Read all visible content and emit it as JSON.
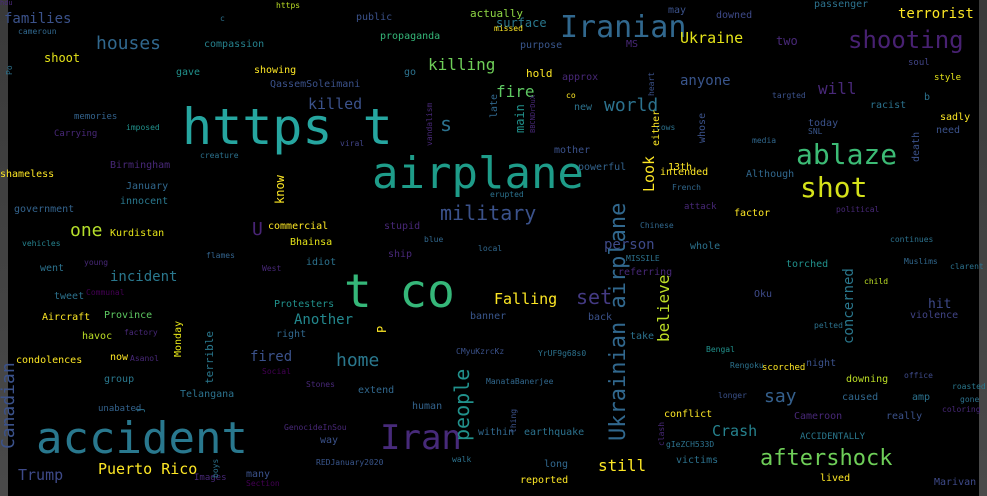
{
  "words": [
    {
      "t": "https t",
      "s": 50,
      "c": "#26a6a0"
    },
    {
      "t": "airplane",
      "s": 44,
      "c": "#1e9c89"
    },
    {
      "t": "t co",
      "s": 46,
      "c": "#35b779"
    },
    {
      "t": "accident",
      "s": 44,
      "c": "#29788e"
    },
    {
      "t": "Iran",
      "s": 34,
      "c": "#472a7a"
    },
    {
      "t": "Iranian",
      "s": 30,
      "c": "#31688e"
    },
    {
      "t": "ablaze",
      "s": 28,
      "c": "#3cbb75"
    },
    {
      "t": "shot",
      "s": 28,
      "c": "#d5e21a"
    },
    {
      "t": "shooting",
      "s": 24,
      "c": "#482172"
    },
    {
      "t": "aftershock",
      "s": 22,
      "c": "#6ece58"
    },
    {
      "t": "military",
      "s": 20,
      "c": "#3b528b"
    },
    {
      "t": "houses",
      "s": 18,
      "c": "#31688e"
    },
    {
      "t": "world",
      "s": 18,
      "c": "#2c728e"
    },
    {
      "t": "killing",
      "s": 16,
      "c": "#6ece58"
    },
    {
      "t": "home",
      "s": 18,
      "c": "#2a788e"
    },
    {
      "t": "set",
      "s": 20,
      "c": "#443a83"
    },
    {
      "t": "say",
      "s": 18,
      "c": "#35608d"
    },
    {
      "t": "one",
      "s": 18,
      "c": "#b5de2b"
    },
    {
      "t": "Ukraine",
      "s": 15,
      "c": "#e5e419"
    },
    {
      "t": "terrorist",
      "s": 14,
      "c": "#fde725"
    },
    {
      "t": "fire",
      "s": 16,
      "c": "#5ec962"
    },
    {
      "t": "killed",
      "s": 15,
      "c": "#3b528b"
    },
    {
      "t": "will",
      "s": 16,
      "c": "#482878"
    },
    {
      "t": "still",
      "s": 16,
      "c": "#fde725"
    },
    {
      "t": "Falling",
      "s": 15,
      "c": "#fde725"
    },
    {
      "t": "Puerto Rico",
      "s": 15,
      "c": "#fde725"
    },
    {
      "t": "Trump",
      "s": 15,
      "c": "#3e4a89"
    },
    {
      "t": "Crash",
      "s": 15,
      "c": "#26828e"
    },
    {
      "t": "Another",
      "s": 14,
      "c": "#23888e"
    },
    {
      "t": "incident",
      "s": 14,
      "c": "#2a788e"
    },
    {
      "t": "anyone",
      "s": 14,
      "c": "#39558c"
    },
    {
      "t": "person",
      "s": 14,
      "c": "#3e4a89"
    },
    {
      "t": "fired",
      "s": 14,
      "c": "#3b528b"
    },
    {
      "t": "families",
      "s": 14,
      "c": "#3b528b"
    },
    {
      "t": "s",
      "s": 20,
      "c": "#2c728e"
    },
    {
      "t": "U",
      "s": 18,
      "c": "#482475"
    },
    {
      "t": "shoot",
      "s": 12,
      "c": "#e5e419"
    },
    {
      "t": "hit",
      "s": 13,
      "c": "#3e4a89"
    },
    {
      "t": "actually",
      "s": 11,
      "c": "#8fd744"
    },
    {
      "t": "surface",
      "s": 12,
      "c": "#29788e"
    },
    {
      "t": "hold",
      "s": 11,
      "c": "#fde725"
    },
    {
      "t": "propaganda",
      "s": 10,
      "c": "#35b779"
    },
    {
      "t": "compassion",
      "s": 10,
      "c": "#26828e"
    },
    {
      "t": "gave",
      "s": 10,
      "c": "#21918c"
    },
    {
      "t": "showing",
      "s": 10,
      "c": "#fde725"
    },
    {
      "t": "QassemSoleimani",
      "s": 10,
      "c": "#3b528b"
    },
    {
      "t": "go",
      "s": 10,
      "c": "#2c728e"
    },
    {
      "t": "purpose",
      "s": 10,
      "c": "#39568c"
    },
    {
      "t": "approx",
      "s": 10,
      "c": "#482878"
    },
    {
      "t": "memories",
      "s": 9,
      "c": "#33638d"
    },
    {
      "t": "Carrying",
      "s": 9,
      "c": "#482878"
    },
    {
      "t": "imposed",
      "s": 8,
      "c": "#21918c"
    },
    {
      "t": "Birmingham",
      "s": 10,
      "c": "#482878"
    },
    {
      "t": "shameless",
      "s": 10,
      "c": "#fde725"
    },
    {
      "t": "January",
      "s": 10,
      "c": "#31688e"
    },
    {
      "t": "innocent",
      "s": 10,
      "c": "#2a788e"
    },
    {
      "t": "government",
      "s": 10,
      "c": "#33638d"
    },
    {
      "t": "Kurdistan",
      "s": 10,
      "c": "#e5e419"
    },
    {
      "t": "vehicles",
      "s": 8,
      "c": "#26828e"
    },
    {
      "t": "went",
      "s": 10,
      "c": "#2c728e"
    },
    {
      "t": "tweet",
      "s": 10,
      "c": "#2c728e"
    },
    {
      "t": "Aircraft",
      "s": 10,
      "c": "#fde725"
    },
    {
      "t": "Province",
      "s": 10,
      "c": "#5ec962"
    },
    {
      "t": "havoc",
      "s": 10,
      "c": "#bddf26"
    },
    {
      "t": "condolences",
      "s": 10,
      "c": "#fde725"
    },
    {
      "t": "now",
      "s": 10,
      "c": "#fde725"
    },
    {
      "t": "group",
      "s": 10,
      "c": "#2a788e"
    },
    {
      "t": "unabated",
      "s": 9,
      "c": "#33638d"
    },
    {
      "t": "Telangana",
      "s": 10,
      "c": "#2c728e"
    },
    {
      "t": "Bhainsa",
      "s": 10,
      "c": "#e5e419"
    },
    {
      "t": "commercial",
      "s": 10,
      "c": "#fde725"
    },
    {
      "t": "Protesters",
      "s": 10,
      "c": "#21918c"
    },
    {
      "t": "right",
      "s": 10,
      "c": "#31688e"
    },
    {
      "t": "creature",
      "s": 8,
      "c": "#2c728e"
    },
    {
      "t": "viral",
      "s": 8,
      "c": "#414487"
    },
    {
      "t": "stupid",
      "s": 10,
      "c": "#482878"
    },
    {
      "t": "idiot",
      "s": 10,
      "c": "#2c728e"
    },
    {
      "t": "banner",
      "s": 10,
      "c": "#39568c"
    },
    {
      "t": "mother",
      "s": 10,
      "c": "#3b528b"
    },
    {
      "t": "powerful",
      "s": 10,
      "c": "#33638d"
    },
    {
      "t": "intended",
      "s": 10,
      "c": "#fde725"
    },
    {
      "t": "Although",
      "s": 10,
      "c": "#31688e"
    },
    {
      "t": "factor",
      "s": 10,
      "c": "#fde725"
    },
    {
      "t": "whole",
      "s": 10,
      "c": "#2c728e"
    },
    {
      "t": "torched",
      "s": 10,
      "c": "#21918c"
    },
    {
      "t": "MISSILE",
      "s": 8,
      "c": "#2c728e"
    },
    {
      "t": "referring",
      "s": 10,
      "c": "#482878"
    },
    {
      "t": "back",
      "s": 10,
      "c": "#3b528b"
    },
    {
      "t": "take",
      "s": 10,
      "c": "#2c728e"
    },
    {
      "t": "Oku",
      "s": 10,
      "c": "#3e4a89"
    },
    {
      "t": "Bengal",
      "s": 8,
      "c": "#21918c"
    },
    {
      "t": "pelted",
      "s": 8,
      "c": "#2c728e"
    },
    {
      "t": "violence",
      "s": 10,
      "c": "#414487"
    },
    {
      "t": "night",
      "s": 10,
      "c": "#3b528b"
    },
    {
      "t": "downing",
      "s": 10,
      "c": "#bddf26"
    },
    {
      "t": "caused",
      "s": 10,
      "c": "#31688e"
    },
    {
      "t": "amp",
      "s": 10,
      "c": "#2c728e"
    },
    {
      "t": "really",
      "s": 10,
      "c": "#3b528b"
    },
    {
      "t": "conflict",
      "s": 10,
      "c": "#fde725"
    },
    {
      "t": "ACCIDENTALLY",
      "s": 9,
      "c": "#2a788e"
    },
    {
      "t": "victims",
      "s": 10,
      "c": "#2c728e"
    },
    {
      "t": "lived",
      "s": 10,
      "c": "#fde725"
    },
    {
      "t": "Marivan",
      "s": 10,
      "c": "#3e4a89"
    },
    {
      "t": "human",
      "s": 10,
      "c": "#33638d"
    },
    {
      "t": "within",
      "s": 10,
      "c": "#31688e"
    },
    {
      "t": "earthquake",
      "s": 10,
      "c": "#2c728e"
    },
    {
      "t": "long",
      "s": 10,
      "c": "#31688e"
    },
    {
      "t": "reported",
      "s": 10,
      "c": "#fde725"
    },
    {
      "t": "extend",
      "s": 10,
      "c": "#31688e"
    },
    {
      "t": "way",
      "s": 10,
      "c": "#3b528b"
    },
    {
      "t": "many",
      "s": 10,
      "c": "#3b528b"
    },
    {
      "t": "REDJanuary2020",
      "s": 8,
      "c": "#39568c"
    },
    {
      "t": "GenocideInSou",
      "s": 8,
      "c": "#482878"
    },
    {
      "t": "Images",
      "s": 9,
      "c": "#482878"
    },
    {
      "t": "Section",
      "s": 8,
      "c": "#440154"
    },
    {
      "t": "Stones",
      "s": 8,
      "c": "#482878"
    },
    {
      "t": "Social",
      "s": 8,
      "c": "#440154"
    },
    {
      "t": "Asanol",
      "s": 8,
      "c": "#482878"
    },
    {
      "t": "factory",
      "s": 8,
      "c": "#482878"
    },
    {
      "t": "Communal",
      "s": 8,
      "c": "#440154"
    },
    {
      "t": "young",
      "s": 8,
      "c": "#482878"
    },
    {
      "t": "flames",
      "s": 8,
      "c": "#33638d"
    },
    {
      "t": "West",
      "s": 8,
      "c": "#482878"
    },
    {
      "t": "local",
      "s": 8,
      "c": "#31688e"
    },
    {
      "t": "Chinese",
      "s": 8,
      "c": "#31688e"
    },
    {
      "t": "attack",
      "s": 9,
      "c": "#482878"
    },
    {
      "t": "French",
      "s": 8,
      "c": "#31688e"
    },
    {
      "t": "erupted",
      "s": 8,
      "c": "#2c728e"
    },
    {
      "t": "political",
      "s": 8,
      "c": "#482878"
    },
    {
      "t": "continues",
      "s": 8,
      "c": "#2c728e"
    },
    {
      "t": "Muslims",
      "s": 8,
      "c": "#31688e"
    },
    {
      "t": "clarent",
      "s": 8,
      "c": "#2c728e"
    },
    {
      "t": "child",
      "s": 8,
      "c": "#bddf26"
    },
    {
      "t": "office",
      "s": 8,
      "c": "#3e4a89"
    },
    {
      "t": "roasted",
      "s": 8,
      "c": "#2a788e"
    },
    {
      "t": "gone",
      "s": 8,
      "c": "#2c728e"
    },
    {
      "t": "coloring",
      "s": 8,
      "c": "#482878"
    },
    {
      "t": "longer",
      "s": 8,
      "c": "#3b528b"
    },
    {
      "t": "scorched",
      "s": 9,
      "c": "#fde725"
    },
    {
      "t": "Rengoku",
      "s": 8,
      "c": "#2c728e"
    },
    {
      "t": "ManataBanerjee",
      "s": 8,
      "c": "#31688e"
    },
    {
      "t": "YrUF9g68s0",
      "s": 8,
      "c": "#2c728e"
    },
    {
      "t": "CMyuKzrcKz",
      "s": 8,
      "c": "#3b528b"
    },
    {
      "t": "Cameroon",
      "s": 10,
      "c": "#482878"
    },
    {
      "t": "gIeZCH533D",
      "s": 8,
      "c": "#2c728e"
    },
    {
      "t": "walk",
      "s": 8,
      "c": "#2c728e"
    },
    {
      "t": "today",
      "s": 10,
      "c": "#3b528b"
    },
    {
      "t": "racist",
      "s": 10,
      "c": "#2c728e"
    },
    {
      "t": "sadly",
      "s": 10,
      "c": "#fde725"
    },
    {
      "t": "need",
      "s": 10,
      "c": "#3b528b"
    },
    {
      "t": "b",
      "s": 10,
      "c": "#2c728e"
    },
    {
      "t": "style",
      "s": 9,
      "c": "#e5e419"
    },
    {
      "t": "soul",
      "s": 9,
      "c": "#414487"
    },
    {
      "t": "cows",
      "s": 8,
      "c": "#2c728e"
    },
    {
      "t": "SNL",
      "s": 8,
      "c": "#39568c"
    },
    {
      "t": "targted",
      "s": 8,
      "c": "#3b528b"
    },
    {
      "t": "media",
      "s": 8,
      "c": "#31688e"
    },
    {
      "t": "13th",
      "s": 10,
      "c": "#fde725"
    },
    {
      "t": "may",
      "s": 10,
      "c": "#3b528b"
    },
    {
      "t": "downed",
      "s": 10,
      "c": "#3e4a89"
    },
    {
      "t": "passenger",
      "s": 10,
      "c": "#2c728e"
    },
    {
      "t": "two",
      "s": 12,
      "c": "#482878"
    },
    {
      "t": "MS",
      "s": 10,
      "c": "#482878"
    },
    {
      "t": "co",
      "s": 8,
      "c": "#fde725"
    },
    {
      "t": "new",
      "s": 10,
      "c": "#2c728e"
    },
    {
      "t": "c",
      "s": 8,
      "c": "#2c728e"
    },
    {
      "t": "https",
      "s": 8,
      "c": "#bddf26"
    },
    {
      "t": "public",
      "s": 10,
      "c": "#3b528b"
    },
    {
      "t": "missed",
      "s": 8,
      "c": "#fde725"
    },
    {
      "t": "cameroun",
      "s": 8,
      "c": "#31688e"
    },
    {
      "t": "blue",
      "s": 8,
      "c": "#31688e"
    },
    {
      "t": "ship",
      "s": 10,
      "c": "#482878"
    },
    {
      "t": "P",
      "s": 12,
      "c": "#fde725"
    },
    {
      "t": "Canadian",
      "s": 18,
      "c": "#3b528b"
    },
    {
      "t": "Ukrainian airplane",
      "s": 22,
      "c": "#31688e"
    },
    {
      "t": "people",
      "s": 20,
      "c": "#21918c"
    },
    {
      "t": "concerned",
      "s": 14,
      "c": "#2a788e"
    },
    {
      "t": "believe",
      "s": 16,
      "c": "#bddf26"
    },
    {
      "t": "Look",
      "s": 15,
      "c": "#fde725"
    },
    {
      "t": "know",
      "s": 12,
      "c": "#fde725"
    },
    {
      "t": "main",
      "s": 12,
      "c": "#21918c"
    },
    {
      "t": "death",
      "s": 10,
      "c": "#3b528b"
    },
    {
      "t": "terrible",
      "s": 11,
      "c": "#2a788e"
    },
    {
      "t": "Monday",
      "s": 10,
      "c": "#e5e419"
    },
    {
      "t": "whose",
      "s": 10,
      "c": "#3b528b"
    },
    {
      "t": "either",
      "s": 10,
      "c": "#fde725"
    },
    {
      "t": "heart",
      "s": 8,
      "c": "#3b528b"
    },
    {
      "t": "thing",
      "s": 8,
      "c": "#3b528b"
    },
    {
      "t": "late",
      "s": 10,
      "c": "#31688e"
    },
    {
      "t": "vandalism",
      "s": 8,
      "c": "#482878"
    },
    {
      "t": "BBCNDrDuX",
      "s": 7,
      "c": "#482878"
    },
    {
      "t": "j",
      "s": 10,
      "c": "#2c728e"
    },
    {
      "t": "boys",
      "s": 8,
      "c": "#2c728e"
    },
    {
      "t": "clash",
      "s": 8,
      "c": "#482878"
    },
    {
      "t": "Po",
      "s": 8,
      "c": "#2c728e"
    },
    {
      "t": "hdu",
      "s": 7,
      "c": "#482878"
    }
  ]
}
